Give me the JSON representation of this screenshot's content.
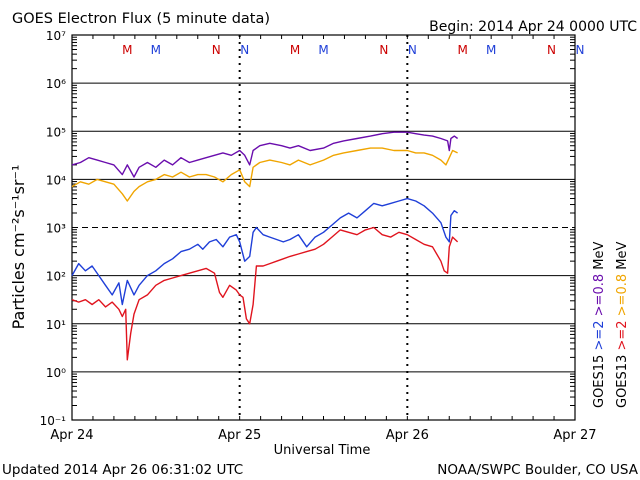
{
  "header": {
    "title": "GOES Electron Flux (5 minute data)",
    "begin": "Begin: 2014 Apr 24 0000 UTC"
  },
  "footer": {
    "updated": "Updated 2014 Apr 26 06:31:02 UTC",
    "source": "NOAA/SWPC Boulder, CO USA"
  },
  "colors": {
    "goes15_08": "#6a0dad",
    "goes13_08": "#f0a500",
    "goes15_2": "#1f3fd8",
    "goes13_2": "#e0141e",
    "M": "#cc0000",
    "N": "#cc0000",
    "M_blue": "#1f3fd8"
  },
  "chart_data": {
    "type": "line",
    "xlabel": "Universal Time",
    "ylabel": "Particles cm⁻²s⁻¹sr⁻¹",
    "x_unit": "days since 2014 Apr 24 0000 UTC",
    "xlim": [
      0,
      3
    ],
    "ylim_log10": [
      -1,
      7
    ],
    "y_scale": "log",
    "x_ticks": [
      {
        "x": 0,
        "label": "Apr 24"
      },
      {
        "x": 1,
        "label": "Apr 25"
      },
      {
        "x": 2,
        "label": "Apr 26"
      },
      {
        "x": 3,
        "label": "Apr 27"
      }
    ],
    "y_ticks": [
      {
        "exp": -1,
        "label": "10⁻¹"
      },
      {
        "exp": 0,
        "label": "10⁰"
      },
      {
        "exp": 1,
        "label": "10¹"
      },
      {
        "exp": 2,
        "label": "10²"
      },
      {
        "exp": 3,
        "label": "10³"
      },
      {
        "exp": 4,
        "label": "10⁴"
      },
      {
        "exp": 5,
        "label": "10⁵"
      },
      {
        "exp": 6,
        "label": "10⁶"
      },
      {
        "exp": 7,
        "label": "10⁷"
      }
    ],
    "threshold": {
      "exp": 3,
      "style": "dashed"
    },
    "mn_markers": [
      {
        "x": 0.33,
        "label": "M",
        "satellite": "GOES13"
      },
      {
        "x": 0.5,
        "label": "M",
        "satellite": "GOES15"
      },
      {
        "x": 0.86,
        "label": "N",
        "satellite": "GOES13"
      },
      {
        "x": 1.03,
        "label": "N",
        "satellite": "GOES15"
      },
      {
        "x": 1.33,
        "label": "M",
        "satellite": "GOES13"
      },
      {
        "x": 1.5,
        "label": "M",
        "satellite": "GOES15"
      },
      {
        "x": 1.86,
        "label": "N",
        "satellite": "GOES13"
      },
      {
        "x": 2.03,
        "label": "N",
        "satellite": "GOES15"
      },
      {
        "x": 2.33,
        "label": "M",
        "satellite": "GOES13"
      },
      {
        "x": 2.5,
        "label": "M",
        "satellite": "GOES15"
      },
      {
        "x": 2.86,
        "label": "N",
        "satellite": "GOES13"
      },
      {
        "x": 3.03,
        "label": "N",
        "satellite": "GOES15"
      }
    ],
    "right_legend": {
      "goes15_label": "GOES15",
      "goes13_label": "GOES13",
      "e2_15": ">=2",
      "e08_15": ">=0.8",
      "e2_13": ">=2",
      "e08_13": ">=0.8",
      "unit": "MeV"
    },
    "series": [
      {
        "name": "GOES15 >=0.8 MeV",
        "color_key": "goes15_08",
        "points": [
          [
            0.0,
            4.3
          ],
          [
            0.05,
            4.35
          ],
          [
            0.1,
            4.45
          ],
          [
            0.15,
            4.4
          ],
          [
            0.2,
            4.35
          ],
          [
            0.25,
            4.3
          ],
          [
            0.3,
            4.1
          ],
          [
            0.33,
            4.3
          ],
          [
            0.37,
            4.05
          ],
          [
            0.4,
            4.25
          ],
          [
            0.45,
            4.35
          ],
          [
            0.5,
            4.25
          ],
          [
            0.55,
            4.4
          ],
          [
            0.6,
            4.3
          ],
          [
            0.65,
            4.45
          ],
          [
            0.7,
            4.35
          ],
          [
            0.75,
            4.4
          ],
          [
            0.8,
            4.45
          ],
          [
            0.85,
            4.5
          ],
          [
            0.9,
            4.55
          ],
          [
            0.95,
            4.5
          ],
          [
            1.0,
            4.6
          ],
          [
            1.03,
            4.5
          ],
          [
            1.06,
            4.3
          ],
          [
            1.08,
            4.6
          ],
          [
            1.12,
            4.7
          ],
          [
            1.18,
            4.75
          ],
          [
            1.25,
            4.7
          ],
          [
            1.3,
            4.65
          ],
          [
            1.35,
            4.7
          ],
          [
            1.42,
            4.6
          ],
          [
            1.5,
            4.65
          ],
          [
            1.56,
            4.75
          ],
          [
            1.62,
            4.8
          ],
          [
            1.7,
            4.85
          ],
          [
            1.78,
            4.9
          ],
          [
            1.85,
            4.95
          ],
          [
            1.92,
            4.98
          ],
          [
            2.0,
            4.98
          ],
          [
            2.05,
            4.95
          ],
          [
            2.1,
            4.92
          ],
          [
            2.15,
            4.9
          ],
          [
            2.2,
            4.85
          ],
          [
            2.24,
            4.8
          ],
          [
            2.25,
            4.6
          ],
          [
            2.26,
            4.85
          ],
          [
            2.28,
            4.9
          ],
          [
            2.3,
            4.85
          ]
        ]
      },
      {
        "name": "GOES13 >=0.8 MeV",
        "color_key": "goes13_08",
        "points": [
          [
            0.0,
            3.85
          ],
          [
            0.05,
            3.95
          ],
          [
            0.1,
            3.9
          ],
          [
            0.15,
            4.0
          ],
          [
            0.2,
            3.95
          ],
          [
            0.25,
            3.9
          ],
          [
            0.3,
            3.7
          ],
          [
            0.33,
            3.55
          ],
          [
            0.37,
            3.75
          ],
          [
            0.4,
            3.85
          ],
          [
            0.45,
            3.95
          ],
          [
            0.5,
            4.0
          ],
          [
            0.55,
            4.1
          ],
          [
            0.6,
            4.05
          ],
          [
            0.65,
            4.15
          ],
          [
            0.7,
            4.05
          ],
          [
            0.75,
            4.1
          ],
          [
            0.8,
            4.1
          ],
          [
            0.85,
            4.05
          ],
          [
            0.9,
            3.95
          ],
          [
            0.95,
            4.1
          ],
          [
            1.0,
            4.2
          ],
          [
            1.03,
            3.95
          ],
          [
            1.06,
            3.85
          ],
          [
            1.08,
            4.25
          ],
          [
            1.12,
            4.35
          ],
          [
            1.18,
            4.4
          ],
          [
            1.25,
            4.35
          ],
          [
            1.3,
            4.3
          ],
          [
            1.35,
            4.4
          ],
          [
            1.42,
            4.3
          ],
          [
            1.5,
            4.4
          ],
          [
            1.56,
            4.5
          ],
          [
            1.62,
            4.55
          ],
          [
            1.7,
            4.6
          ],
          [
            1.78,
            4.65
          ],
          [
            1.85,
            4.65
          ],
          [
            1.92,
            4.6
          ],
          [
            2.0,
            4.6
          ],
          [
            2.05,
            4.55
          ],
          [
            2.1,
            4.55
          ],
          [
            2.15,
            4.5
          ],
          [
            2.2,
            4.4
          ],
          [
            2.23,
            4.3
          ],
          [
            2.25,
            4.45
          ],
          [
            2.27,
            4.6
          ],
          [
            2.3,
            4.55
          ]
        ]
      },
      {
        "name": "GOES15 >=2 MeV",
        "color_key": "goes15_2",
        "points": [
          [
            0.0,
            2.0
          ],
          [
            0.04,
            2.25
          ],
          [
            0.08,
            2.1
          ],
          [
            0.12,
            2.2
          ],
          [
            0.16,
            2.0
          ],
          [
            0.2,
            1.8
          ],
          [
            0.24,
            1.6
          ],
          [
            0.28,
            1.85
          ],
          [
            0.3,
            1.4
          ],
          [
            0.33,
            1.9
          ],
          [
            0.37,
            1.6
          ],
          [
            0.4,
            1.8
          ],
          [
            0.45,
            2.0
          ],
          [
            0.5,
            2.1
          ],
          [
            0.55,
            2.25
          ],
          [
            0.6,
            2.35
          ],
          [
            0.65,
            2.5
          ],
          [
            0.7,
            2.55
          ],
          [
            0.75,
            2.65
          ],
          [
            0.78,
            2.55
          ],
          [
            0.82,
            2.7
          ],
          [
            0.86,
            2.75
          ],
          [
            0.9,
            2.6
          ],
          [
            0.94,
            2.8
          ],
          [
            0.98,
            2.85
          ],
          [
            1.0,
            2.7
          ],
          [
            1.03,
            2.3
          ],
          [
            1.06,
            2.4
          ],
          [
            1.08,
            2.9
          ],
          [
            1.1,
            3.0
          ],
          [
            1.14,
            2.85
          ],
          [
            1.18,
            2.8
          ],
          [
            1.22,
            2.75
          ],
          [
            1.26,
            2.7
          ],
          [
            1.3,
            2.75
          ],
          [
            1.35,
            2.85
          ],
          [
            1.4,
            2.6
          ],
          [
            1.45,
            2.8
          ],
          [
            1.5,
            2.9
          ],
          [
            1.55,
            3.05
          ],
          [
            1.6,
            3.2
          ],
          [
            1.65,
            3.3
          ],
          [
            1.7,
            3.2
          ],
          [
            1.75,
            3.35
          ],
          [
            1.8,
            3.5
          ],
          [
            1.85,
            3.45
          ],
          [
            1.9,
            3.5
          ],
          [
            1.95,
            3.55
          ],
          [
            2.0,
            3.6
          ],
          [
            2.05,
            3.55
          ],
          [
            2.1,
            3.45
          ],
          [
            2.15,
            3.3
          ],
          [
            2.2,
            3.1
          ],
          [
            2.23,
            2.8
          ],
          [
            2.25,
            2.7
          ],
          [
            2.26,
            3.25
          ],
          [
            2.28,
            3.35
          ],
          [
            2.3,
            3.3
          ]
        ]
      },
      {
        "name": "GOES13 >=2 MeV",
        "color_key": "goes13_2",
        "points": [
          [
            0.0,
            1.5
          ],
          [
            0.04,
            1.45
          ],
          [
            0.08,
            1.5
          ],
          [
            0.12,
            1.4
          ],
          [
            0.16,
            1.5
          ],
          [
            0.2,
            1.35
          ],
          [
            0.24,
            1.45
          ],
          [
            0.28,
            1.3
          ],
          [
            0.3,
            1.15
          ],
          [
            0.32,
            1.3
          ],
          [
            0.33,
            0.25
          ],
          [
            0.35,
            0.8
          ],
          [
            0.37,
            1.2
          ],
          [
            0.4,
            1.5
          ],
          [
            0.45,
            1.6
          ],
          [
            0.5,
            1.8
          ],
          [
            0.55,
            1.9
          ],
          [
            0.6,
            1.95
          ],
          [
            0.65,
            2.0
          ],
          [
            0.7,
            2.05
          ],
          [
            0.75,
            2.1
          ],
          [
            0.8,
            2.15
          ],
          [
            0.85,
            2.05
          ],
          [
            0.88,
            1.65
          ],
          [
            0.9,
            1.55
          ],
          [
            0.94,
            1.8
          ],
          [
            0.98,
            1.7
          ],
          [
            1.0,
            1.6
          ],
          [
            1.02,
            1.55
          ],
          [
            1.04,
            1.1
          ],
          [
            1.06,
            1.0
          ],
          [
            1.08,
            1.4
          ],
          [
            1.1,
            2.2
          ],
          [
            1.14,
            2.2
          ],
          [
            1.18,
            2.25
          ],
          [
            1.22,
            2.3
          ],
          [
            1.26,
            2.35
          ],
          [
            1.3,
            2.4
          ],
          [
            1.35,
            2.45
          ],
          [
            1.4,
            2.5
          ],
          [
            1.45,
            2.55
          ],
          [
            1.5,
            2.65
          ],
          [
            1.55,
            2.8
          ],
          [
            1.6,
            2.95
          ],
          [
            1.65,
            2.9
          ],
          [
            1.7,
            2.85
          ],
          [
            1.75,
            2.95
          ],
          [
            1.8,
            3.0
          ],
          [
            1.85,
            2.85
          ],
          [
            1.9,
            2.8
          ],
          [
            1.95,
            2.9
          ],
          [
            2.0,
            2.85
          ],
          [
            2.05,
            2.75
          ],
          [
            2.1,
            2.65
          ],
          [
            2.15,
            2.6
          ],
          [
            2.2,
            2.3
          ],
          [
            2.22,
            2.1
          ],
          [
            2.24,
            2.05
          ],
          [
            2.25,
            2.6
          ],
          [
            2.27,
            2.8
          ],
          [
            2.3,
            2.7
          ]
        ]
      }
    ]
  }
}
